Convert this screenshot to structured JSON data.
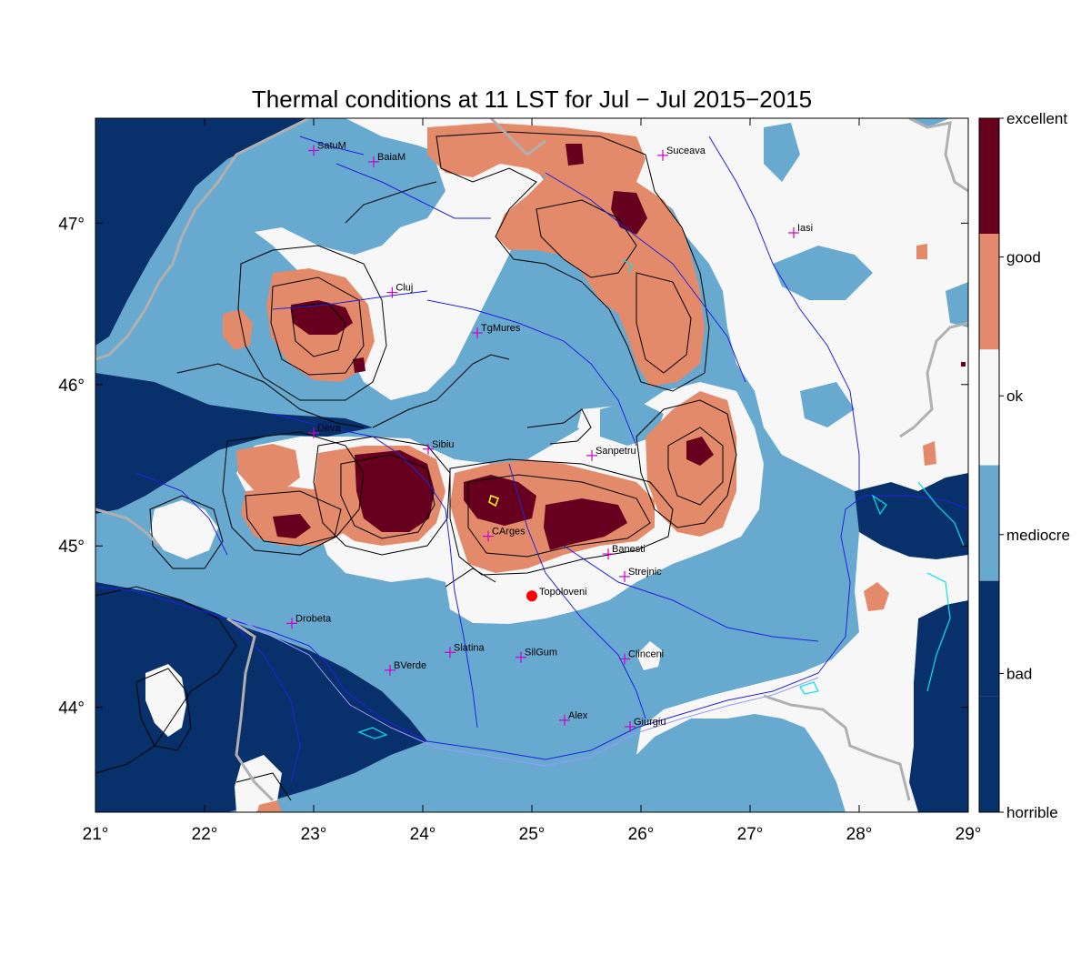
{
  "title": "Thermal conditions at 11 LST for Jul − Jul  2015−2015",
  "map": {
    "lon_range": [
      21,
      29
    ],
    "lat_range": [
      43.35,
      47.65
    ],
    "x_ticks": [
      {
        "value": 21,
        "label": "21°"
      },
      {
        "value": 22,
        "label": "22°"
      },
      {
        "value": 23,
        "label": "23°"
      },
      {
        "value": 24,
        "label": "24°"
      },
      {
        "value": 25,
        "label": "25°"
      },
      {
        "value": 26,
        "label": "26°"
      },
      {
        "value": 27,
        "label": "27°"
      },
      {
        "value": 28,
        "label": "28°"
      },
      {
        "value": 29,
        "label": "29°"
      }
    ],
    "y_ticks": [
      {
        "value": 44,
        "label": "44°"
      },
      {
        "value": 45,
        "label": "45°"
      },
      {
        "value": 46,
        "label": "46°"
      },
      {
        "value": 47,
        "label": "47°"
      }
    ],
    "cities": [
      {
        "name": "SatuM",
        "lon": 23.0,
        "lat": 47.45
      },
      {
        "name": "BaiaM",
        "lon": 23.55,
        "lat": 47.38
      },
      {
        "name": "Suceava",
        "lon": 26.2,
        "lat": 47.42
      },
      {
        "name": "Iasi",
        "lon": 27.4,
        "lat": 46.94
      },
      {
        "name": "Cluj",
        "lon": 23.72,
        "lat": 46.57
      },
      {
        "name": "TgMures",
        "lon": 24.5,
        "lat": 46.32
      },
      {
        "name": "Deva",
        "lon": 23.0,
        "lat": 45.7
      },
      {
        "name": "Sibiu",
        "lon": 24.05,
        "lat": 45.6
      },
      {
        "name": "Sanpetru",
        "lon": 25.55,
        "lat": 45.56
      },
      {
        "name": "CArges",
        "lon": 24.6,
        "lat": 45.06
      },
      {
        "name": "Banesti",
        "lon": 25.7,
        "lat": 44.95
      },
      {
        "name": "Strejnic",
        "lon": 25.85,
        "lat": 44.81
      },
      {
        "name": "Drobeta",
        "lon": 22.8,
        "lat": 44.52
      },
      {
        "name": "Slatina",
        "lon": 24.25,
        "lat": 44.34
      },
      {
        "name": "SilGum",
        "lon": 24.9,
        "lat": 44.31
      },
      {
        "name": "Clinceni",
        "lon": 25.85,
        "lat": 44.3
      },
      {
        "name": "BVerde",
        "lon": 23.7,
        "lat": 44.23
      },
      {
        "name": "Alex",
        "lon": 25.3,
        "lat": 43.92
      },
      {
        "name": "Giurgiu",
        "lon": 25.9,
        "lat": 43.88
      }
    ],
    "highlight": {
      "name": "Topoloveni",
      "lon": 25.0,
      "lat": 44.69,
      "color": "#ff0000"
    }
  },
  "legend": {
    "categories": [
      {
        "label": "excellent",
        "color": "#67001f"
      },
      {
        "label": "good",
        "color": "#67001f"
      },
      {
        "label": "ok",
        "color": "#e28a6a"
      },
      {
        "label": "mediocre",
        "color": "#f7f7f7"
      },
      {
        "label": "bad",
        "color": "#67a9cf"
      },
      {
        "label": "horrible",
        "color": "#08306b"
      }
    ]
  },
  "colors": {
    "horrible": "#08306b",
    "bad": "#67a9cf",
    "mediocre": "#f7f7f7",
    "ok": "#e28a6a",
    "good": "#67001f",
    "border": "#b0b0b0",
    "river": "#2222dd",
    "contour": "#000000",
    "city_marker": "#cc00cc"
  }
}
